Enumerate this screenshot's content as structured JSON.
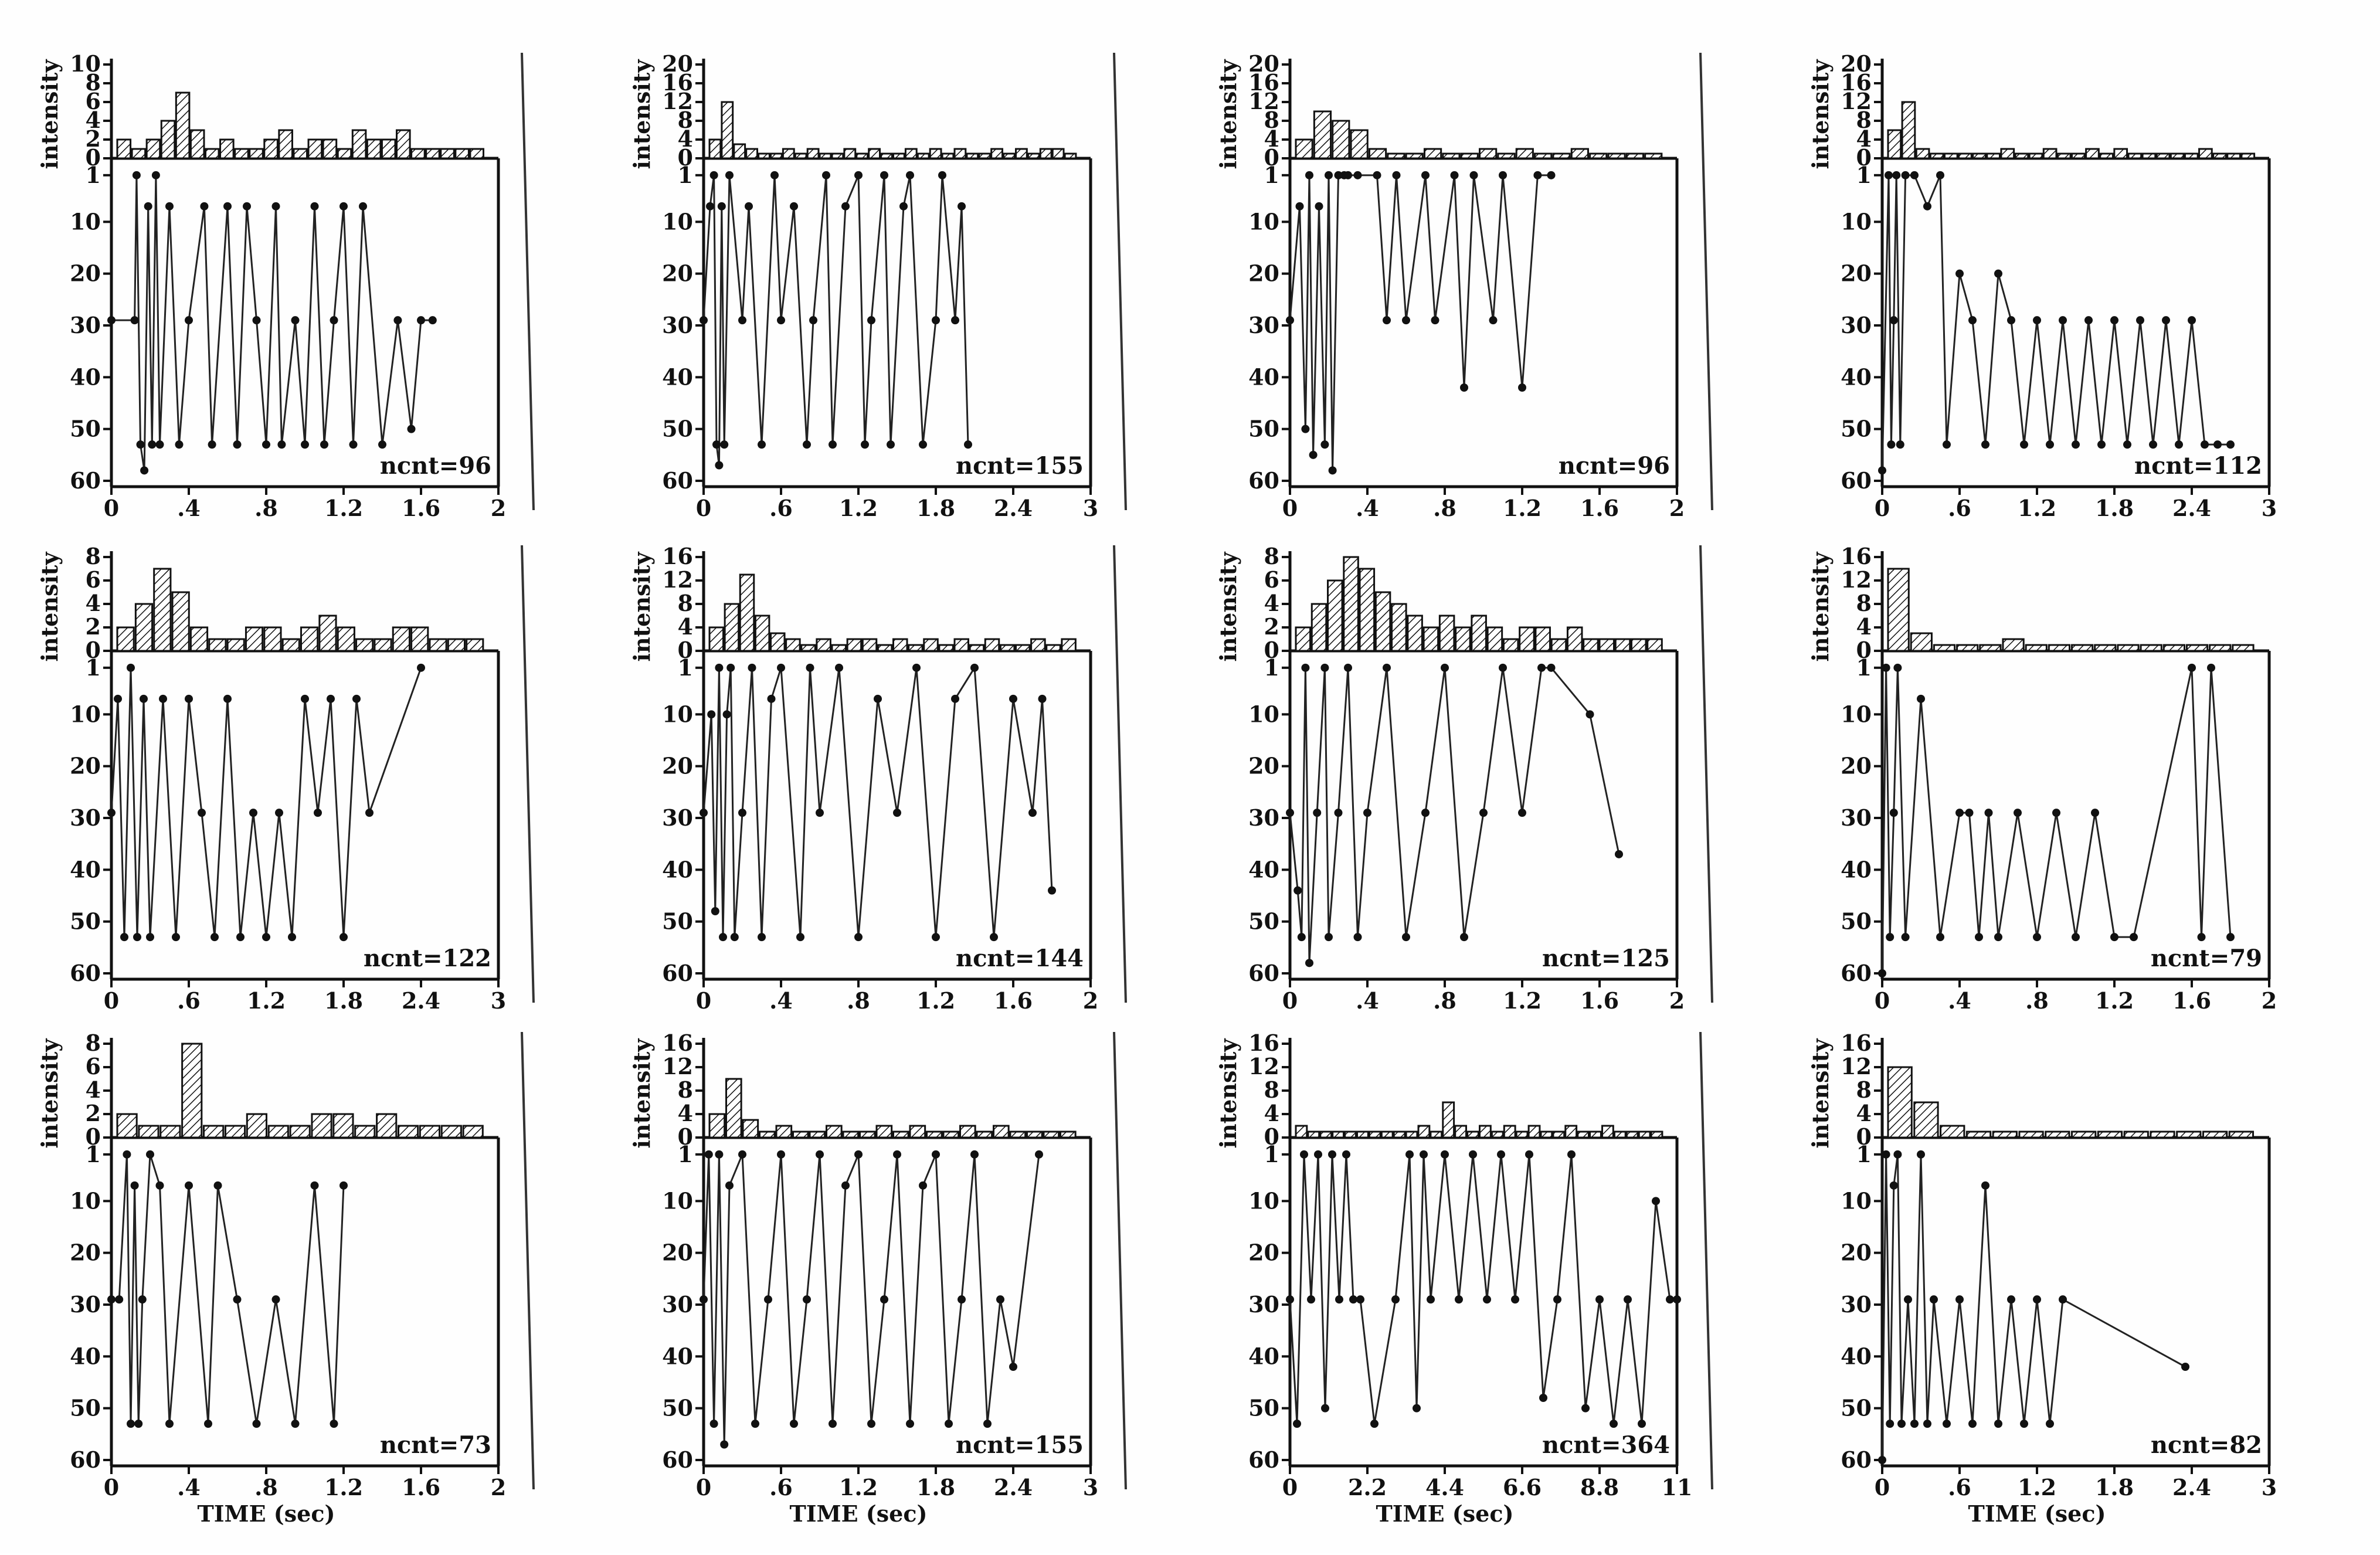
{
  "labels": {
    "intensity": "intensity",
    "time": "TIME (sec)"
  },
  "chart_data": [
    {
      "type": "line",
      "ncnt_label": "ncnt=96",
      "xlim": [
        0,
        2
      ],
      "xticks": [
        0,
        0.4,
        0.8,
        1.2,
        1.6,
        2
      ],
      "xtick_labels": [
        "0",
        ".4",
        ".8",
        "1.2",
        "1.6",
        "2"
      ],
      "hist_ylim": [
        0,
        10
      ],
      "hist_yticks": [
        0,
        2,
        4,
        6,
        8,
        10
      ],
      "hist": [
        2,
        1,
        2,
        4,
        7,
        3,
        1,
        2,
        1,
        1,
        2,
        3,
        1,
        2,
        2,
        1,
        3,
        2,
        2,
        3,
        1,
        1,
        1,
        1,
        1
      ],
      "ylim": [
        60,
        0
      ],
      "yticks": [
        1,
        10,
        20,
        30,
        40,
        50,
        60
      ],
      "x": [
        0.0,
        0.12,
        0.13,
        0.15,
        0.17,
        0.19,
        0.21,
        0.23,
        0.25,
        0.3,
        0.35,
        0.4,
        0.48,
        0.52,
        0.6,
        0.65,
        0.7,
        0.75,
        0.8,
        0.85,
        0.88,
        0.95,
        1.0,
        1.05,
        1.1,
        1.15,
        1.2,
        1.25,
        1.3,
        1.4,
        1.48,
        1.55,
        1.6,
        1.66
      ],
      "y": [
        29,
        29,
        1,
        53,
        58,
        7,
        53,
        1,
        53,
        7,
        53,
        29,
        7,
        53,
        7,
        53,
        7,
        29,
        53,
        7,
        53,
        29,
        53,
        7,
        53,
        29,
        7,
        53,
        7,
        53,
        29,
        50,
        29,
        29
      ]
    },
    {
      "type": "line",
      "ncnt_label": "ncnt=155",
      "xlim": [
        0,
        3
      ],
      "xticks": [
        0,
        0.6,
        1.2,
        1.8,
        2.4,
        3
      ],
      "xtick_labels": [
        "0",
        ".6",
        "1.2",
        "1.8",
        "2.4",
        "3"
      ],
      "hist_ylim": [
        0,
        20
      ],
      "hist_yticks": [
        0,
        4,
        8,
        12,
        16,
        20
      ],
      "hist": [
        4,
        12,
        3,
        2,
        1,
        1,
        2,
        1,
        2,
        1,
        1,
        2,
        1,
        2,
        1,
        1,
        2,
        1,
        2,
        1,
        2,
        1,
        1,
        2,
        1,
        2,
        1,
        2,
        2,
        1
      ],
      "ylim": [
        60,
        0
      ],
      "yticks": [
        1,
        10,
        20,
        30,
        40,
        50,
        60
      ],
      "x": [
        0.0,
        0.05,
        0.08,
        0.1,
        0.12,
        0.14,
        0.16,
        0.2,
        0.3,
        0.35,
        0.45,
        0.55,
        0.6,
        0.7,
        0.8,
        0.85,
        0.95,
        1.0,
        1.1,
        1.2,
        1.25,
        1.3,
        1.4,
        1.45,
        1.55,
        1.6,
        1.7,
        1.8,
        1.85,
        1.95,
        2.0,
        2.05
      ],
      "y": [
        29,
        7,
        1,
        53,
        57,
        7,
        53,
        1,
        29,
        7,
        53,
        1,
        29,
        7,
        53,
        29,
        1,
        53,
        7,
        1,
        53,
        29,
        1,
        53,
        7,
        1,
        53,
        29,
        1,
        29,
        7,
        53
      ]
    },
    {
      "type": "line",
      "ncnt_label": "ncnt=96",
      "xlim": [
        0,
        2
      ],
      "xticks": [
        0,
        0.4,
        0.8,
        1.2,
        1.6,
        2
      ],
      "xtick_labels": [
        "0",
        ".4",
        ".8",
        "1.2",
        "1.6",
        "2"
      ],
      "hist_ylim": [
        0,
        20
      ],
      "hist_yticks": [
        0,
        4,
        8,
        12,
        16,
        20
      ],
      "hist": [
        4,
        10,
        8,
        6,
        2,
        1,
        1,
        2,
        1,
        1,
        2,
        1,
        2,
        1,
        1,
        2,
        1,
        1,
        1,
        1
      ],
      "ylim": [
        60,
        0
      ],
      "yticks": [
        1,
        10,
        20,
        30,
        40,
        50,
        60
      ],
      "x": [
        0.0,
        0.05,
        0.08,
        0.1,
        0.12,
        0.15,
        0.18,
        0.2,
        0.22,
        0.25,
        0.28,
        0.3,
        0.35,
        0.45,
        0.5,
        0.55,
        0.6,
        0.7,
        0.75,
        0.85,
        0.9,
        0.95,
        1.05,
        1.1,
        1.2,
        1.28,
        1.35
      ],
      "y": [
        29,
        7,
        50,
        1,
        55,
        7,
        53,
        1,
        58,
        1,
        1,
        1,
        1,
        1,
        29,
        1,
        29,
        1,
        29,
        1,
        42,
        1,
        29,
        1,
        42,
        1,
        1
      ]
    },
    {
      "type": "line",
      "ncnt_label": "ncnt=112",
      "xlim": [
        0,
        3
      ],
      "xticks": [
        0,
        0.6,
        1.2,
        1.8,
        2.4,
        3
      ],
      "xtick_labels": [
        "0",
        ".6",
        "1.2",
        "1.8",
        "2.4",
        "3"
      ],
      "hist_ylim": [
        0,
        20
      ],
      "hist_yticks": [
        0,
        4,
        8,
        12,
        16,
        20
      ],
      "hist": [
        6,
        12,
        2,
        1,
        1,
        1,
        1,
        1,
        2,
        1,
        1,
        2,
        1,
        1,
        2,
        1,
        2,
        1,
        1,
        1,
        1,
        1,
        2,
        1,
        1,
        1
      ],
      "ylim": [
        60,
        0
      ],
      "yticks": [
        1,
        10,
        20,
        30,
        40,
        50,
        60
      ],
      "x": [
        0.0,
        0.05,
        0.07,
        0.09,
        0.11,
        0.14,
        0.18,
        0.25,
        0.35,
        0.45,
        0.5,
        0.6,
        0.7,
        0.8,
        0.9,
        1.0,
        1.1,
        1.2,
        1.3,
        1.4,
        1.5,
        1.6,
        1.7,
        1.8,
        1.9,
        2.0,
        2.1,
        2.2,
        2.3,
        2.4,
        2.5,
        2.6,
        2.7
      ],
      "y": [
        58,
        1,
        53,
        29,
        1,
        53,
        1,
        1,
        7,
        1,
        53,
        20,
        29,
        53,
        20,
        29,
        53,
        29,
        53,
        29,
        53,
        29,
        53,
        29,
        53,
        29,
        53,
        29,
        53,
        29,
        53,
        53,
        53
      ]
    },
    {
      "type": "line",
      "ncnt_label": "ncnt=122",
      "xlim": [
        0,
        3
      ],
      "xticks": [
        0,
        0.6,
        1.2,
        1.8,
        2.4,
        3
      ],
      "xtick_labels": [
        "0",
        ".6",
        "1.2",
        "1.8",
        "2.4",
        "3"
      ],
      "hist_ylim": [
        0,
        8
      ],
      "hist_yticks": [
        0,
        2,
        4,
        6,
        8
      ],
      "hist": [
        2,
        4,
        7,
        5,
        2,
        1,
        1,
        2,
        2,
        1,
        2,
        3,
        2,
        1,
        1,
        2,
        2,
        1,
        1,
        1
      ],
      "ylim": [
        60,
        0
      ],
      "yticks": [
        1,
        10,
        20,
        30,
        40,
        50,
        60
      ],
      "x": [
        0.0,
        0.05,
        0.1,
        0.15,
        0.2,
        0.25,
        0.3,
        0.4,
        0.5,
        0.6,
        0.7,
        0.8,
        0.9,
        1.0,
        1.1,
        1.2,
        1.3,
        1.4,
        1.5,
        1.6,
        1.7,
        1.8,
        1.9,
        2.0,
        2.4
      ],
      "y": [
        29,
        7,
        53,
        1,
        53,
        7,
        53,
        7,
        53,
        7,
        29,
        53,
        7,
        53,
        29,
        53,
        29,
        53,
        7,
        29,
        7,
        53,
        7,
        29,
        1
      ]
    },
    {
      "type": "line",
      "ncnt_label": "ncnt=144",
      "xlim": [
        0,
        2
      ],
      "xticks": [
        0,
        0.4,
        0.8,
        1.2,
        1.6,
        2
      ],
      "xtick_labels": [
        "0",
        ".4",
        ".8",
        "1.2",
        "1.6",
        "2"
      ],
      "hist_ylim": [
        0,
        16
      ],
      "hist_yticks": [
        0,
        4,
        8,
        12,
        16
      ],
      "hist": [
        4,
        8,
        13,
        6,
        3,
        2,
        1,
        2,
        1,
        2,
        2,
        1,
        2,
        1,
        2,
        1,
        2,
        1,
        2,
        1,
        1,
        2,
        1,
        2
      ],
      "ylim": [
        60,
        0
      ],
      "yticks": [
        1,
        10,
        20,
        30,
        40,
        50,
        60
      ],
      "x": [
        0.0,
        0.04,
        0.06,
        0.08,
        0.1,
        0.12,
        0.14,
        0.16,
        0.2,
        0.25,
        0.3,
        0.35,
        0.4,
        0.5,
        0.55,
        0.6,
        0.7,
        0.8,
        0.9,
        1.0,
        1.1,
        1.2,
        1.3,
        1.4,
        1.5,
        1.6,
        1.7,
        1.75,
        1.8
      ],
      "y": [
        29,
        10,
        48,
        1,
        53,
        10,
        1,
        53,
        29,
        1,
        53,
        7,
        1,
        53,
        1,
        29,
        1,
        53,
        7,
        29,
        1,
        53,
        7,
        1,
        53,
        7,
        29,
        7,
        44
      ]
    },
    {
      "type": "line",
      "ncnt_label": "ncnt=125",
      "xlim": [
        0,
        2
      ],
      "xticks": [
        0,
        0.4,
        0.8,
        1.2,
        1.6,
        2
      ],
      "xtick_labels": [
        "0",
        ".4",
        ".8",
        "1.2",
        "1.6",
        "2"
      ],
      "hist_ylim": [
        0,
        8
      ],
      "hist_yticks": [
        0,
        2,
        4,
        6,
        8
      ],
      "hist": [
        2,
        4,
        6,
        8,
        7,
        5,
        4,
        3,
        2,
        3,
        2,
        3,
        2,
        1,
        2,
        2,
        1,
        2,
        1,
        1,
        1,
        1,
        1
      ],
      "ylim": [
        60,
        0
      ],
      "yticks": [
        1,
        10,
        20,
        30,
        40,
        50,
        60
      ],
      "x": [
        0.0,
        0.04,
        0.06,
        0.08,
        0.1,
        0.14,
        0.18,
        0.2,
        0.25,
        0.3,
        0.35,
        0.4,
        0.5,
        0.6,
        0.7,
        0.8,
        0.9,
        1.0,
        1.1,
        1.2,
        1.3,
        1.35,
        1.55,
        1.7
      ],
      "y": [
        29,
        44,
        53,
        1,
        58,
        29,
        1,
        53,
        29,
        1,
        53,
        29,
        1,
        53,
        29,
        1,
        53,
        29,
        1,
        29,
        1,
        1,
        10,
        37
      ]
    },
    {
      "type": "line",
      "ncnt_label": "ncnt=79",
      "xlim": [
        0,
        2
      ],
      "xticks": [
        0,
        0.4,
        0.8,
        1.2,
        1.6,
        2
      ],
      "xtick_labels": [
        "0",
        ".4",
        ".8",
        "1.2",
        "1.6",
        "2"
      ],
      "hist_ylim": [
        0,
        16
      ],
      "hist_yticks": [
        0,
        4,
        8,
        12,
        16
      ],
      "hist": [
        14,
        3,
        1,
        1,
        1,
        2,
        1,
        1,
        1,
        1,
        1,
        1,
        1,
        1,
        1,
        1
      ],
      "ylim": [
        60,
        0
      ],
      "yticks": [
        1,
        10,
        20,
        30,
        40,
        50,
        60
      ],
      "x": [
        0.0,
        0.02,
        0.04,
        0.06,
        0.08,
        0.12,
        0.2,
        0.3,
        0.4,
        0.45,
        0.5,
        0.55,
        0.6,
        0.7,
        0.8,
        0.9,
        1.0,
        1.1,
        1.2,
        1.3,
        1.6,
        1.65,
        1.7,
        1.8
      ],
      "y": [
        60,
        1,
        53,
        29,
        1,
        53,
        7,
        53,
        29,
        29,
        53,
        29,
        53,
        29,
        53,
        29,
        53,
        29,
        53,
        53,
        1,
        53,
        1,
        53
      ]
    },
    {
      "type": "line",
      "ncnt_label": "ncnt=73",
      "xlim": [
        0,
        2
      ],
      "xticks": [
        0,
        0.4,
        0.8,
        1.2,
        1.6,
        2
      ],
      "xtick_labels": [
        "0",
        ".4",
        ".8",
        "1.2",
        "1.6",
        "2"
      ],
      "hist_ylim": [
        0,
        8
      ],
      "hist_yticks": [
        0,
        2,
        4,
        6,
        8
      ],
      "hist": [
        2,
        1,
        1,
        8,
        1,
        1,
        2,
        1,
        1,
        2,
        2,
        1,
        2,
        1,
        1,
        1,
        1
      ],
      "ylim": [
        60,
        0
      ],
      "yticks": [
        1,
        10,
        20,
        30,
        40,
        50,
        60
      ],
      "x": [
        0.0,
        0.04,
        0.08,
        0.1,
        0.12,
        0.14,
        0.16,
        0.2,
        0.25,
        0.3,
        0.4,
        0.5,
        0.55,
        0.65,
        0.75,
        0.85,
        0.95,
        1.05,
        1.15,
        1.2
      ],
      "y": [
        29,
        29,
        1,
        53,
        7,
        53,
        29,
        1,
        7,
        53,
        7,
        53,
        7,
        29,
        53,
        29,
        53,
        7,
        53,
        7
      ]
    },
    {
      "type": "line",
      "ncnt_label": "ncnt=155",
      "xlim": [
        0,
        3
      ],
      "xticks": [
        0,
        0.6,
        1.2,
        1.8,
        2.4,
        3
      ],
      "xtick_labels": [
        "0",
        ".6",
        "1.2",
        "1.8",
        "2.4",
        "3"
      ],
      "hist_ylim": [
        0,
        16
      ],
      "hist_yticks": [
        0,
        4,
        8,
        12,
        16
      ],
      "hist": [
        4,
        10,
        3,
        1,
        2,
        1,
        1,
        2,
        1,
        1,
        2,
        1,
        2,
        1,
        1,
        2,
        1,
        2,
        1,
        1,
        1,
        1
      ],
      "ylim": [
        60,
        0
      ],
      "yticks": [
        1,
        10,
        20,
        30,
        40,
        50,
        60
      ],
      "x": [
        0.0,
        0.04,
        0.08,
        0.12,
        0.16,
        0.2,
        0.3,
        0.4,
        0.5,
        0.6,
        0.7,
        0.8,
        0.9,
        1.0,
        1.1,
        1.2,
        1.3,
        1.4,
        1.5,
        1.6,
        1.7,
        1.8,
        1.9,
        2.0,
        2.1,
        2.2,
        2.3,
        2.4,
        2.6
      ],
      "y": [
        29,
        1,
        53,
        1,
        57,
        7,
        1,
        53,
        29,
        1,
        53,
        29,
        1,
        53,
        7,
        1,
        53,
        29,
        1,
        53,
        7,
        1,
        53,
        29,
        1,
        53,
        29,
        42,
        1
      ]
    },
    {
      "type": "line",
      "ncnt_label": "ncnt=364",
      "xlim": [
        0,
        11
      ],
      "xticks": [
        0,
        2.2,
        4.4,
        6.6,
        8.8,
        11
      ],
      "xtick_labels": [
        "0",
        "2.2",
        "4.4",
        "6.6",
        "8.8",
        "11"
      ],
      "hist_ylim": [
        0,
        16
      ],
      "hist_yticks": [
        0,
        4,
        8,
        12,
        16
      ],
      "hist": [
        2,
        1,
        1,
        1,
        1,
        1,
        1,
        1,
        1,
        1,
        2,
        1,
        6,
        2,
        1,
        2,
        1,
        2,
        1,
        2,
        1,
        1,
        2,
        1,
        1,
        2,
        1,
        1,
        1,
        1
      ],
      "ylim": [
        60,
        0
      ],
      "yticks": [
        1,
        10,
        20,
        30,
        40,
        50,
        60
      ],
      "x": [
        0.0,
        0.2,
        0.4,
        0.6,
        0.8,
        1.0,
        1.2,
        1.4,
        1.6,
        1.8,
        2.0,
        2.4,
        3.0,
        3.4,
        3.6,
        3.8,
        4.0,
        4.4,
        4.8,
        5.2,
        5.6,
        6.0,
        6.4,
        6.8,
        7.2,
        7.6,
        8.0,
        8.4,
        8.8,
        9.2,
        9.6,
        10.0,
        10.4,
        10.8,
        11.0
      ],
      "y": [
        29,
        53,
        1,
        29,
        1,
        50,
        1,
        29,
        1,
        29,
        29,
        53,
        29,
        1,
        50,
        1,
        29,
        1,
        29,
        1,
        29,
        1,
        29,
        1,
        48,
        29,
        1,
        50,
        29,
        53,
        29,
        53,
        10,
        29,
        29
      ]
    },
    {
      "type": "line",
      "ncnt_label": "ncnt=82",
      "xlim": [
        0,
        3
      ],
      "xticks": [
        0,
        0.6,
        1.2,
        1.8,
        2.4,
        3
      ],
      "xtick_labels": [
        "0",
        ".6",
        "1.2",
        "1.8",
        "2.4",
        "3"
      ],
      "hist_ylim": [
        0,
        16
      ],
      "hist_yticks": [
        0,
        4,
        8,
        12,
        16
      ],
      "hist": [
        12,
        6,
        2,
        1,
        1,
        1,
        1,
        1,
        1,
        1,
        1,
        1,
        1,
        1
      ],
      "ylim": [
        60,
        0
      ],
      "yticks": [
        1,
        10,
        20,
        30,
        40,
        50,
        60
      ],
      "x": [
        0.0,
        0.03,
        0.06,
        0.09,
        0.12,
        0.15,
        0.2,
        0.25,
        0.3,
        0.35,
        0.4,
        0.5,
        0.6,
        0.7,
        0.8,
        0.9,
        1.0,
        1.1,
        1.2,
        1.3,
        1.4,
        2.35
      ],
      "y": [
        60,
        1,
        53,
        7,
        1,
        53,
        29,
        53,
        1,
        53,
        29,
        53,
        29,
        53,
        7,
        53,
        29,
        53,
        29,
        53,
        29,
        42
      ]
    }
  ]
}
